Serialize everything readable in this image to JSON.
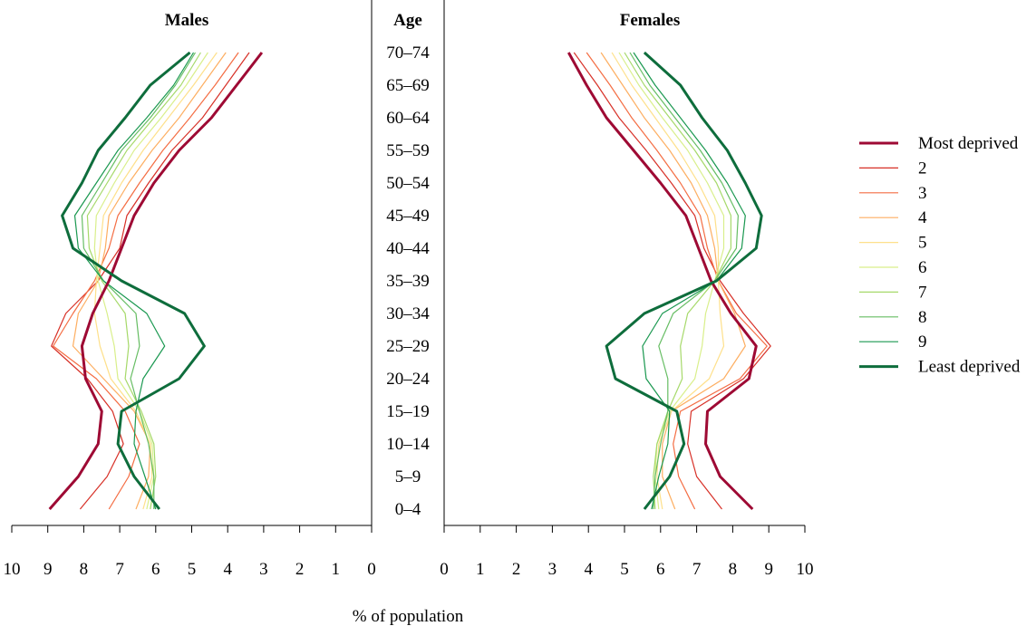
{
  "chart_data": {
    "type": "line",
    "panel_titles": {
      "left": "Males",
      "right": "Females"
    },
    "age_header": "Age",
    "xlabel": "% of population",
    "age_groups": [
      "0–4",
      "5–9",
      "10–14",
      "15–19",
      "20–24",
      "25–29",
      "30–34",
      "35–39",
      "40–44",
      "45–49",
      "50–54",
      "55–59",
      "60–64",
      "65–69",
      "70–74"
    ],
    "xlim": [
      0,
      10
    ],
    "x_ticks_left": [
      "10",
      "9",
      "8",
      "7",
      "6",
      "5",
      "4",
      "3",
      "2",
      "1",
      "0"
    ],
    "x_ticks_right": [
      "0",
      "1",
      "2",
      "3",
      "4",
      "5",
      "6",
      "7",
      "8",
      "9",
      "10"
    ],
    "legend_position": "right",
    "series": [
      {
        "name": "Most deprived",
        "color": "#9e0a34",
        "width": 3,
        "males": [
          8.95,
          8.15,
          7.6,
          7.5,
          7.95,
          8.05,
          7.75,
          7.3,
          6.95,
          6.6,
          6.05,
          5.35,
          4.45,
          3.75,
          3.05
        ],
        "females": [
          8.55,
          7.65,
          7.25,
          7.3,
          8.45,
          8.65,
          7.95,
          7.4,
          7.05,
          6.7,
          6.0,
          5.25,
          4.5,
          3.95,
          3.45
        ]
      },
      {
        "name": "2",
        "color": "#d73027",
        "width": 1.2,
        "males": [
          8.1,
          7.35,
          6.9,
          7.2,
          7.9,
          8.9,
          8.5,
          7.6,
          7.0,
          6.8,
          6.2,
          5.55,
          4.7,
          4.05,
          3.4
        ],
        "females": [
          7.7,
          7.0,
          6.75,
          6.85,
          8.3,
          9.05,
          8.3,
          7.65,
          7.2,
          6.95,
          6.3,
          5.6,
          4.85,
          4.25,
          3.6
        ]
      },
      {
        "name": "3",
        "color": "#f46d43",
        "width": 1.2,
        "males": [
          7.3,
          6.75,
          6.45,
          6.85,
          7.65,
          8.85,
          8.3,
          7.7,
          7.3,
          7.05,
          6.45,
          5.8,
          5.05,
          4.35,
          3.7
        ],
        "females": [
          6.95,
          6.5,
          6.35,
          6.55,
          8.2,
          8.95,
          8.1,
          7.6,
          7.3,
          7.1,
          6.55,
          5.9,
          5.2,
          4.6,
          3.95
        ]
      },
      {
        "name": "4",
        "color": "#fdae61",
        "width": 1.2,
        "males": [
          6.55,
          6.2,
          6.15,
          6.6,
          7.45,
          8.3,
          8.15,
          7.6,
          7.4,
          7.3,
          6.75,
          6.1,
          5.35,
          4.7,
          4.05
        ],
        "females": [
          6.4,
          6.05,
          6.05,
          6.3,
          7.75,
          8.35,
          8.05,
          7.6,
          7.5,
          7.3,
          6.85,
          6.25,
          5.55,
          4.95,
          4.35
        ]
      },
      {
        "name": "5",
        "color": "#fee08b",
        "width": 1.2,
        "males": [
          6.35,
          6.1,
          6.15,
          6.55,
          7.25,
          7.55,
          7.7,
          7.65,
          7.55,
          7.45,
          6.95,
          6.35,
          5.65,
          4.95,
          4.3
        ],
        "females": [
          6.05,
          5.9,
          5.95,
          6.3,
          7.35,
          7.75,
          7.65,
          7.6,
          7.6,
          7.5,
          7.05,
          6.5,
          5.85,
          5.2,
          4.65
        ]
      },
      {
        "name": "6",
        "color": "#d9ef8b",
        "width": 1.2,
        "males": [
          6.25,
          6.05,
          6.1,
          6.45,
          7.05,
          7.15,
          7.35,
          7.6,
          7.7,
          7.65,
          7.15,
          6.6,
          5.85,
          5.15,
          4.55
        ],
        "females": [
          5.95,
          5.85,
          5.9,
          6.25,
          6.95,
          7.15,
          7.25,
          7.5,
          7.75,
          7.75,
          7.3,
          6.75,
          6.05,
          5.4,
          4.85
        ]
      },
      {
        "name": "7",
        "color": "#a6d96a",
        "width": 1.2,
        "males": [
          6.15,
          6.0,
          6.05,
          6.4,
          6.85,
          6.75,
          6.85,
          7.5,
          7.85,
          7.9,
          7.35,
          6.8,
          6.05,
          5.3,
          4.75
        ],
        "females": [
          5.85,
          5.8,
          5.9,
          6.2,
          6.6,
          6.55,
          6.75,
          7.5,
          7.95,
          7.95,
          7.55,
          6.95,
          6.25,
          5.55,
          5.0
        ]
      },
      {
        "name": "8",
        "color": "#66bd63",
        "width": 1.2,
        "males": [
          6.05,
          6.05,
          6.2,
          6.45,
          6.7,
          6.45,
          6.55,
          7.45,
          8.0,
          8.05,
          7.5,
          6.95,
          6.15,
          5.45,
          4.9
        ],
        "females": [
          5.8,
          5.85,
          6.0,
          6.2,
          6.2,
          5.95,
          6.35,
          7.5,
          8.1,
          8.15,
          7.7,
          7.1,
          6.4,
          5.7,
          5.15
        ]
      },
      {
        "name": "9",
        "color": "#1a9850",
        "width": 1.2,
        "males": [
          6.0,
          6.3,
          6.6,
          6.55,
          6.35,
          5.75,
          6.25,
          7.45,
          8.15,
          8.25,
          7.65,
          7.05,
          6.25,
          5.5,
          4.95
        ],
        "females": [
          5.75,
          5.95,
          6.2,
          6.25,
          5.6,
          5.5,
          6.05,
          7.55,
          8.25,
          8.35,
          7.85,
          7.25,
          6.55,
          5.85,
          5.25
        ]
      },
      {
        "name": "Least deprived",
        "color": "#0e6d3c",
        "width": 3,
        "males": [
          5.9,
          6.6,
          7.05,
          6.95,
          5.35,
          4.65,
          5.2,
          6.95,
          8.3,
          8.6,
          8.05,
          7.6,
          6.85,
          6.15,
          5.05
        ],
        "females": [
          5.55,
          6.25,
          6.65,
          6.45,
          4.75,
          4.5,
          5.55,
          7.55,
          8.65,
          8.8,
          8.35,
          7.85,
          7.15,
          6.55,
          5.55
        ]
      }
    ]
  }
}
